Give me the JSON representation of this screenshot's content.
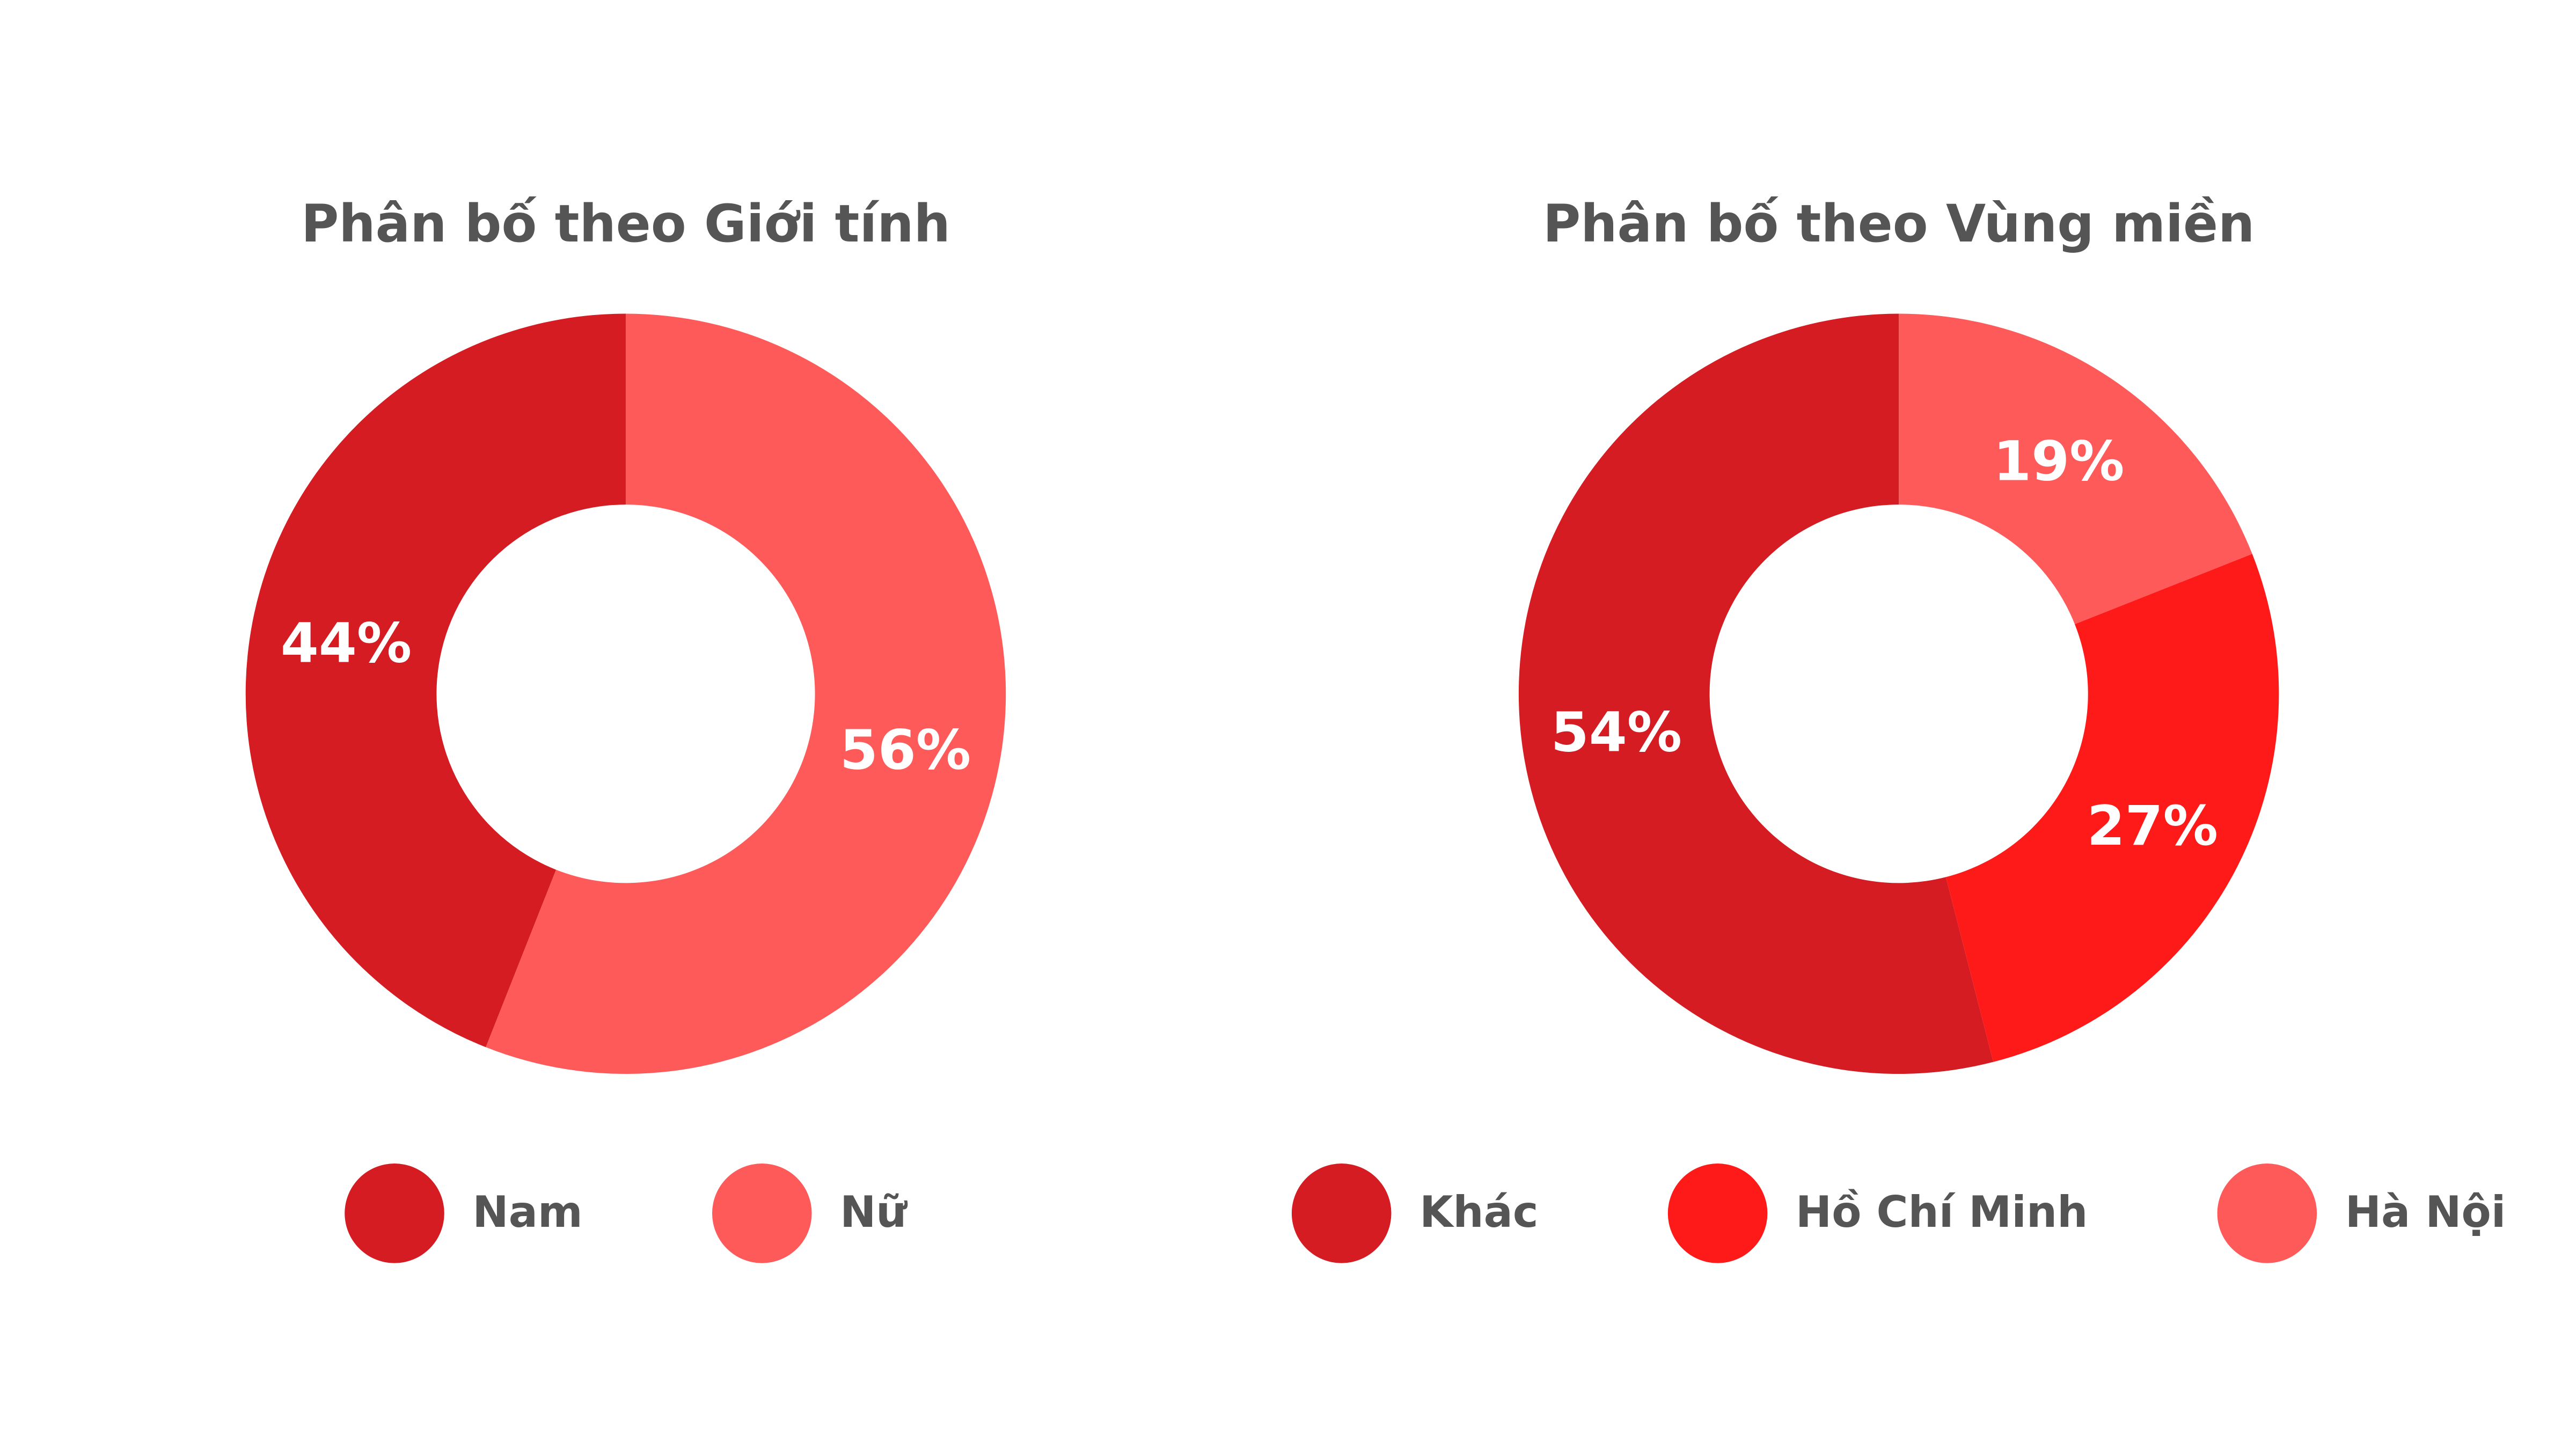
{
  "chart_data": [
    {
      "type": "donut",
      "title": "Phân bố theo Giới tính",
      "categories": [
        "Nam",
        "Nữ"
      ],
      "values": [
        44,
        56
      ],
      "value_labels": [
        "44%",
        "56%"
      ],
      "colors": [
        "#d41c22",
        "#ff5a5a"
      ]
    },
    {
      "type": "donut",
      "title": "Phân bố theo Vùng miền",
      "categories": [
        "Khác",
        "Hồ Chí Minh",
        "Hà Nội"
      ],
      "values": [
        54,
        27,
        19
      ],
      "value_labels": [
        "54%",
        "27%",
        "19%"
      ],
      "colors": [
        "#d41c22",
        "#ff1a1a",
        "#ff5a5a"
      ]
    }
  ]
}
